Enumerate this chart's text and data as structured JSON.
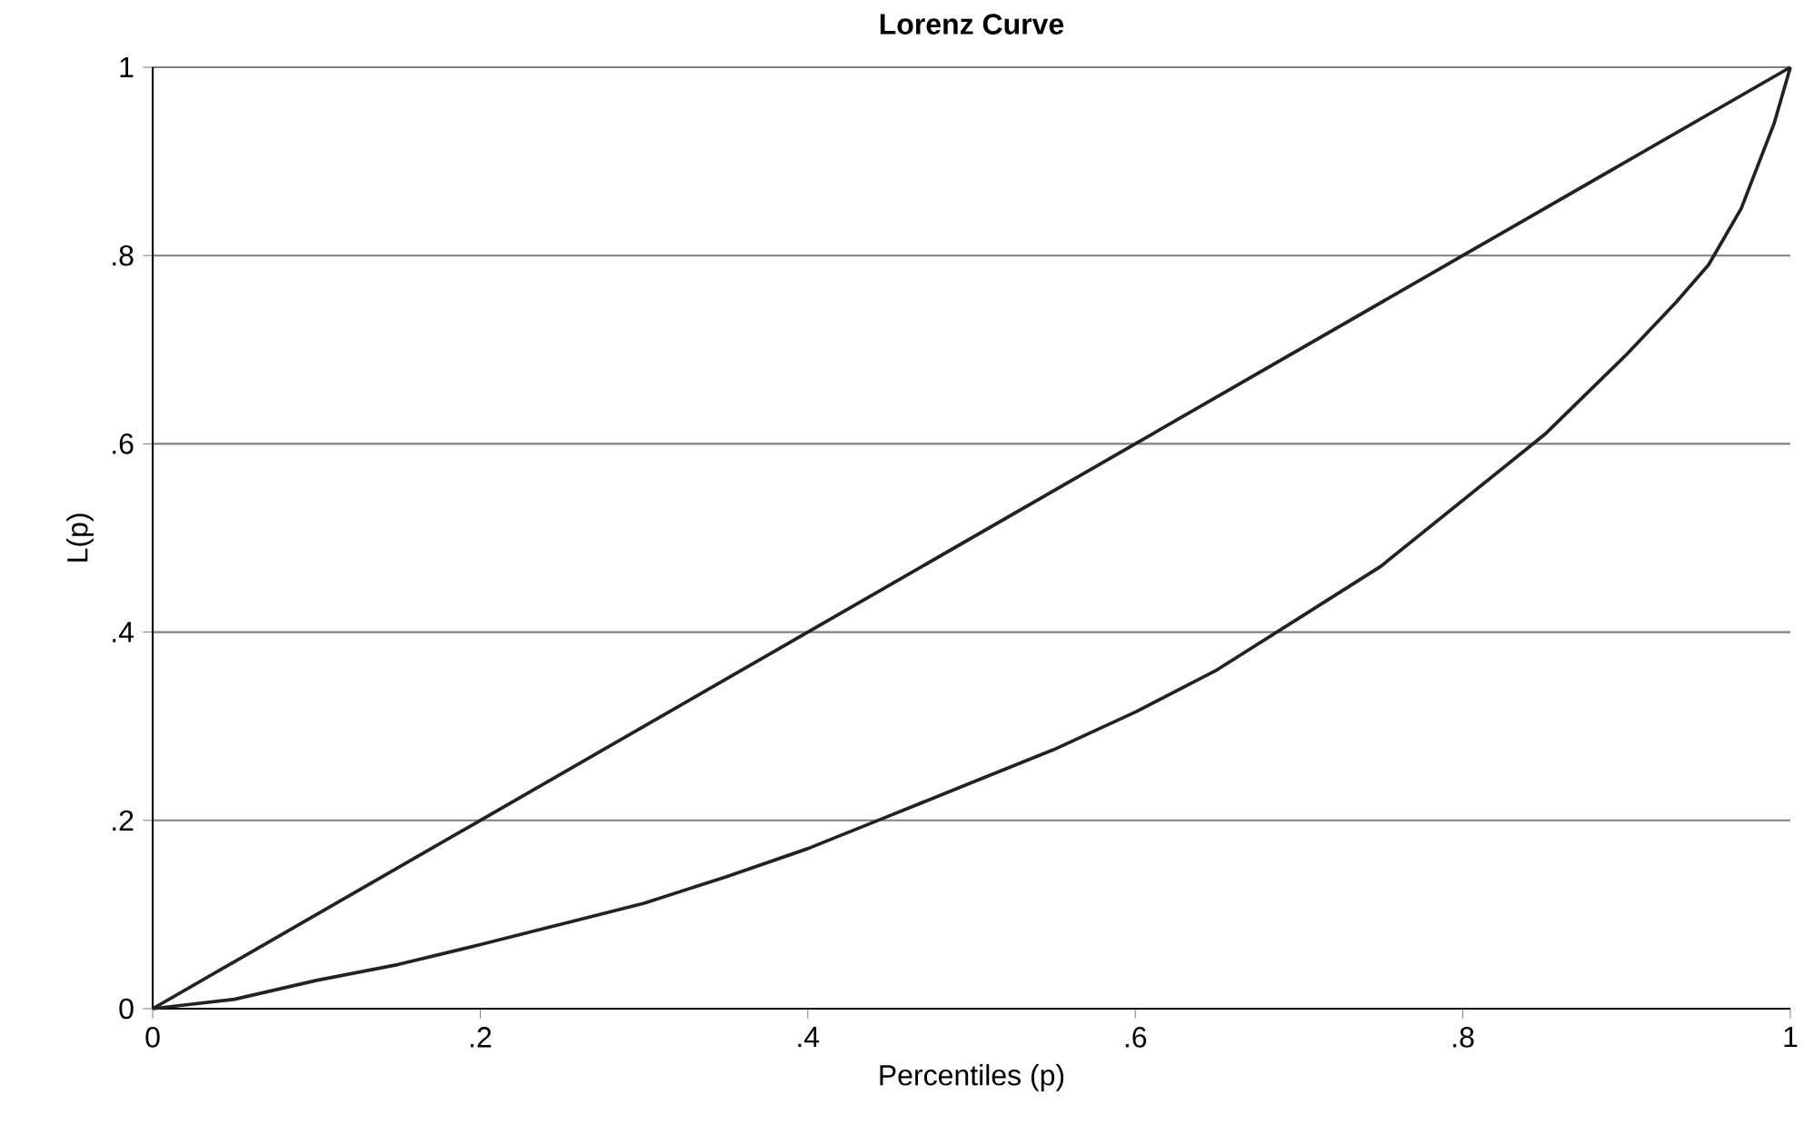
{
  "chart_data": {
    "type": "line",
    "title": "Lorenz Curve",
    "xlabel": "Percentiles (p)",
    "ylabel": "L(p)",
    "series": [
      {
        "color": "#222222",
        "x": [
          0,
          0.2,
          0.4,
          0.6,
          0.8,
          1
        ],
        "values": [
          0,
          0.2,
          0.4,
          0.6,
          0.8,
          1
        ]
      },
      {
        "color": "#222222",
        "x": [
          0,
          0.05,
          0.1,
          0.15,
          0.2,
          0.25,
          0.3,
          0.35,
          0.4,
          0.45,
          0.5,
          0.55,
          0.6,
          0.65,
          0.7,
          0.75,
          0.8,
          0.85,
          0.9,
          0.93,
          0.95,
          0.97,
          0.99,
          1
        ],
        "values": [
          0,
          0.01,
          0.03,
          0.047,
          0.068,
          0.09,
          0.112,
          0.14,
          0.17,
          0.205,
          0.24,
          0.275,
          0.315,
          0.36,
          0.415,
          0.47,
          0.54,
          0.61,
          0.695,
          0.75,
          0.79,
          0.85,
          0.94,
          1
        ]
      }
    ],
    "xlim": [
      0,
      1
    ],
    "ylim": [
      0,
      1
    ],
    "xticks": [
      0,
      {
        "value": 0.2,
        "label": ".2"
      },
      {
        "value": 0.4,
        "label": ".4"
      },
      {
        "value": 0.6,
        "label": ".6"
      },
      {
        "value": 0.8,
        "label": ".8"
      },
      1
    ],
    "yticks": [
      0,
      {
        "value": 0.2,
        "label": ".2"
      },
      {
        "value": 0.4,
        "label": ".4"
      },
      {
        "value": 0.6,
        "label": ".6"
      },
      {
        "value": 0.8,
        "label": ".8"
      },
      1
    ],
    "grid": "y",
    "marker": "none",
    "line_style": "solid"
  }
}
